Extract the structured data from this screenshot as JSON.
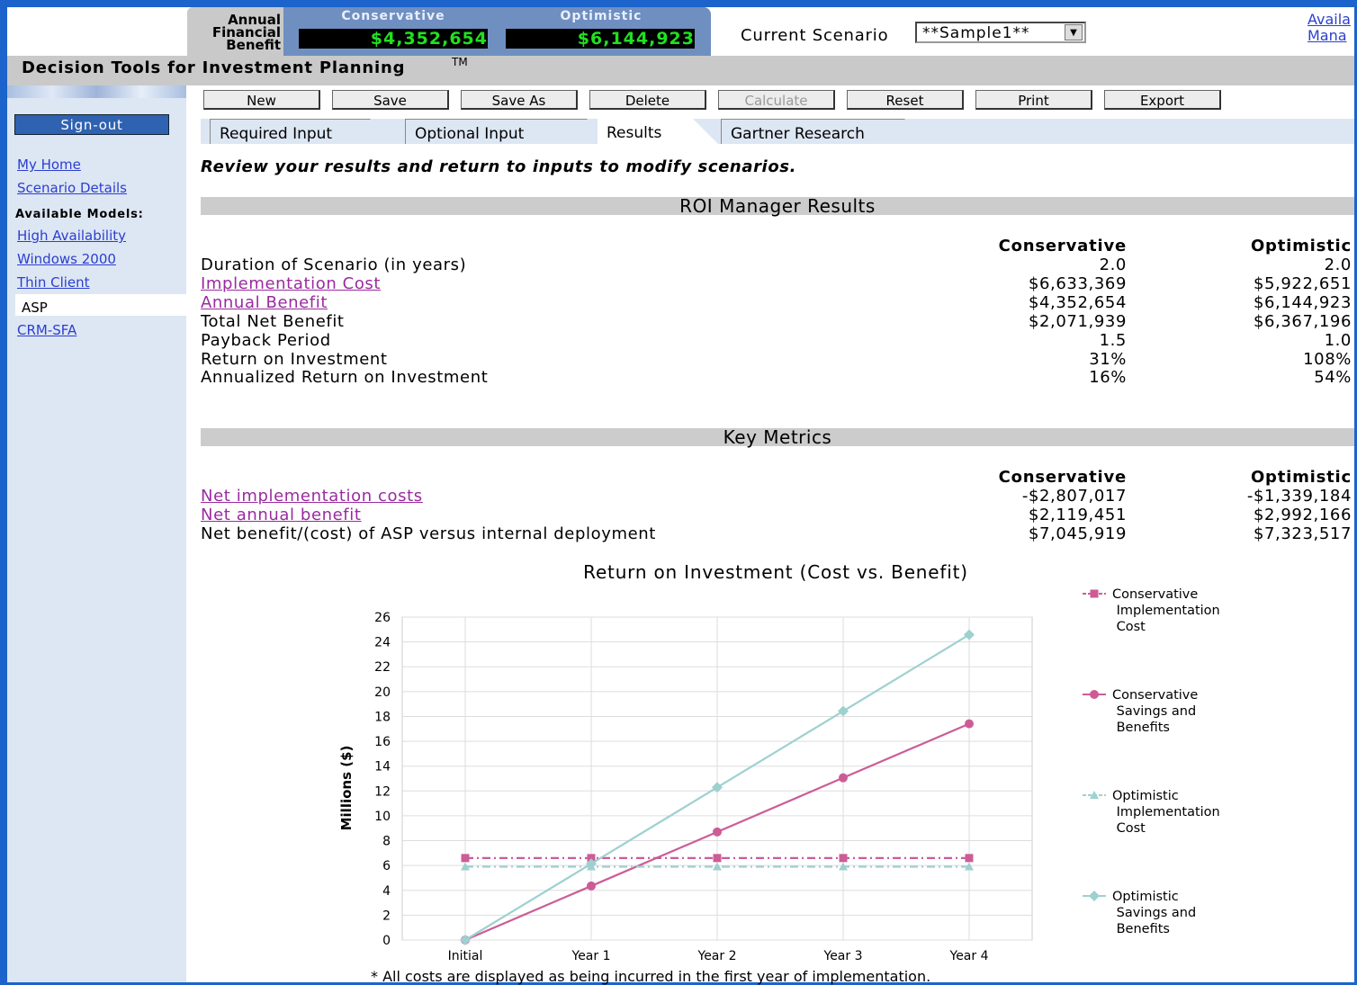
{
  "header": {
    "benefit_label": "Annual Financial Benefit",
    "conservative_label": "Conservative",
    "optimistic_label": "Optimistic",
    "conservative_value": "$4,352,654",
    "optimistic_value": "$6,144,923",
    "scenario_label": "Current Scenario",
    "scenario_value": "**Sample1**",
    "links": [
      "Availa",
      "Mana"
    ]
  },
  "app_title": "Decision Tools for Investment Planning",
  "trademark": "TM",
  "sidebar": {
    "signout": "Sign-out",
    "links": [
      "My Home",
      "Scenario Details"
    ],
    "models_label": "Available Models:",
    "models": [
      {
        "label": "High Availability",
        "active": false
      },
      {
        "label": "Windows 2000",
        "active": false
      },
      {
        "label": "Thin Client",
        "active": false
      },
      {
        "label": "ASP",
        "active": true
      },
      {
        "label": "CRM-SFA",
        "active": false
      }
    ]
  },
  "toolbar": [
    {
      "label": "New",
      "enabled": true
    },
    {
      "label": "Save",
      "enabled": true
    },
    {
      "label": "Save As",
      "enabled": true
    },
    {
      "label": "Delete",
      "enabled": true
    },
    {
      "label": "Calculate",
      "enabled": false
    },
    {
      "label": "Reset",
      "enabled": true
    },
    {
      "label": "Print",
      "enabled": true
    },
    {
      "label": "Export",
      "enabled": true
    }
  ],
  "tabs": [
    {
      "label": "Required Input",
      "active": false
    },
    {
      "label": "Optional Input",
      "active": false
    },
    {
      "label": "Results",
      "active": true
    },
    {
      "label": "Gartner Research",
      "active": false
    }
  ],
  "instruction": "Review your results and return to inputs to modify scenarios.",
  "results": {
    "title": "ROI Manager Results",
    "columns": [
      "Conservative",
      "Optimistic"
    ],
    "rows": [
      {
        "label": "Duration of Scenario (in years)",
        "link": false,
        "values": [
          "2.0",
          "2.0"
        ]
      },
      {
        "label": "Implementation Cost",
        "link": true,
        "values": [
          "$6,633,369",
          "$5,922,651"
        ]
      },
      {
        "label": "Annual Benefit",
        "link": true,
        "values": [
          "$4,352,654",
          "$6,144,923"
        ]
      },
      {
        "label": "Total Net Benefit",
        "link": false,
        "values": [
          "$2,071,939",
          "$6,367,196"
        ]
      },
      {
        "label": "Payback Period",
        "link": false,
        "values": [
          "1.5",
          "1.0"
        ]
      },
      {
        "label": "Return on Investment",
        "link": false,
        "values": [
          "31%",
          "108%"
        ]
      },
      {
        "label": "Annualized Return on Investment",
        "link": false,
        "values": [
          "16%",
          "54%"
        ]
      }
    ]
  },
  "key_metrics": {
    "title": "Key Metrics",
    "columns": [
      "Conservative",
      "Optimistic"
    ],
    "rows": [
      {
        "label": "Net implementation costs",
        "link": true,
        "values": [
          "-$2,807,017",
          "-$1,339,184"
        ]
      },
      {
        "label": "Net annual benefit",
        "link": true,
        "values": [
          "$2,119,451",
          "$2,992,166"
        ]
      },
      {
        "label": "Net benefit/(cost) of ASP versus internal deployment",
        "link": false,
        "values": [
          "$7,045,919",
          "$7,323,517"
        ]
      }
    ]
  },
  "chart_data": {
    "type": "line",
    "title": "Return on Investment (Cost vs. Benefit)",
    "y_label": "Millions ($)",
    "categories": [
      "Initial",
      "Year 1",
      "Year 2",
      "Year 3",
      "Year 4"
    ],
    "ylim": [
      0,
      26
    ],
    "yticks": [
      0,
      2,
      4,
      6,
      8,
      10,
      12,
      14,
      16,
      18,
      20,
      22,
      24,
      26
    ],
    "grid": true,
    "legend": "right",
    "series": [
      {
        "name": "Conservative Implementation Cost",
        "color": "#cc5c96",
        "dashed": true,
        "marker": "square",
        "values": [
          6.6,
          6.6,
          6.6,
          6.6,
          6.6
        ]
      },
      {
        "name": "Conservative Savings and Benefits",
        "color": "#cc5c96",
        "dashed": false,
        "marker": "circle",
        "values": [
          0,
          4.35,
          8.7,
          13.06,
          17.41
        ]
      },
      {
        "name": "Optimistic Implementation Cost",
        "color": "#9fd0d0",
        "dashed": true,
        "marker": "triangle",
        "values": [
          5.9,
          5.9,
          5.9,
          5.9,
          5.9
        ]
      },
      {
        "name": "Optimistic Savings and Benefits",
        "color": "#9fd0d0",
        "dashed": false,
        "marker": "diamond",
        "values": [
          0,
          6.14,
          12.29,
          18.43,
          24.58
        ]
      }
    ]
  },
  "footnote": "* All costs are displayed as being incurred in the first year of implementation."
}
